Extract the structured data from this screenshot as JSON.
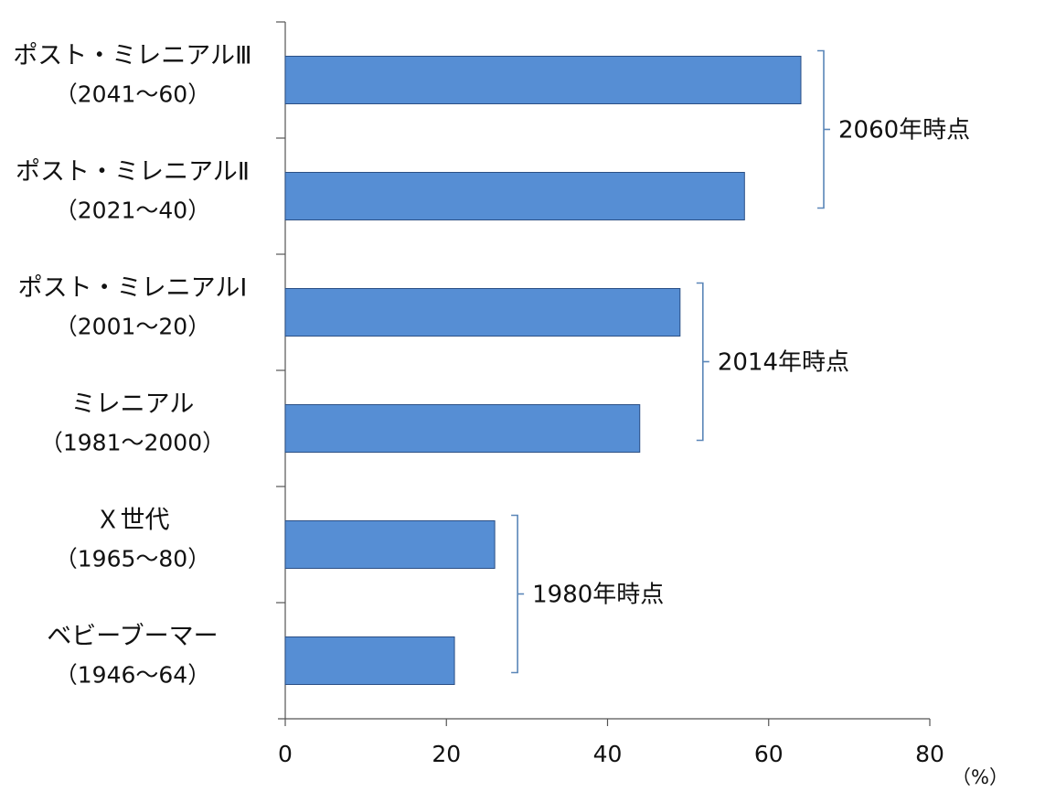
{
  "chart_data": {
    "type": "bar",
    "orientation": "horizontal",
    "categories": [
      {
        "name": "ポスト・ミレニアルⅢ",
        "years": "（2041～60）"
      },
      {
        "name": "ポスト・ミレニアルⅡ",
        "years": "（2021～40）"
      },
      {
        "name": "ポスト・ミレニアルⅠ",
        "years": "（2001～20）"
      },
      {
        "name": "ミレニアル",
        "years": "（1981～2000）"
      },
      {
        "name": "Ｘ世代",
        "years": "（1965～80）"
      },
      {
        "name": "ベビーブーマー",
        "years": "（1946～64）"
      }
    ],
    "values": [
      64,
      57,
      49,
      44,
      26,
      21
    ],
    "xlim": [
      0,
      80
    ],
    "xticks": [
      "0",
      "20",
      "40",
      "60",
      "80"
    ],
    "unit_label": "（%）",
    "groups": [
      {
        "label": "2060年時点",
        "categories": [
          0,
          1
        ]
      },
      {
        "label": "2014年時点",
        "categories": [
          2,
          3
        ]
      },
      {
        "label": "1980年時点",
        "categories": [
          4,
          5
        ]
      }
    ],
    "bar_color": "#568ed4",
    "bar_edge_color": "#2b4f85",
    "axis_color": "#555555",
    "bracket_color": "#5a86b8"
  }
}
